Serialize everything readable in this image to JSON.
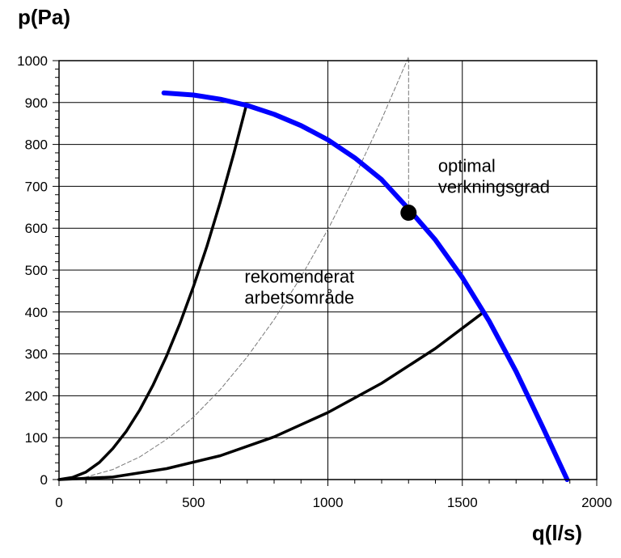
{
  "chart_data": {
    "type": "line",
    "ylabel": "p(Pa)",
    "xlabel": "q(l/s)",
    "xlim": [
      0,
      2000
    ],
    "ylim": [
      0,
      1000
    ],
    "x_ticks": [
      0,
      500,
      1000,
      1500,
      2000
    ],
    "y_ticks": [
      0,
      100,
      200,
      300,
      400,
      500,
      600,
      700,
      800,
      900,
      1000
    ],
    "x_minor_step": 100,
    "y_minor_step": 20,
    "grid": true,
    "series": [
      {
        "color": "#0000ff",
        "style": "thick",
        "x": [
          390,
          500,
          600,
          700,
          800,
          900,
          1000,
          1100,
          1200,
          1300,
          1400,
          1500,
          1600,
          1700,
          1800,
          1890
        ],
        "y": [
          923,
          918,
          908,
          893,
          872,
          845,
          811,
          768,
          716,
          646,
          572,
          482,
          378,
          258,
          124,
          0
        ]
      },
      {
        "color": "#000000",
        "style": "thick",
        "x": [
          0,
          50,
          100,
          150,
          200,
          250,
          300,
          350,
          400,
          450,
          500,
          550,
          600,
          650,
          697
        ],
        "y": [
          0,
          5,
          18,
          41,
          74,
          115,
          166,
          226,
          295,
          373,
          461,
          557,
          663,
          778,
          895
        ]
      },
      {
        "color": "#000000",
        "style": "thick",
        "x": [
          0,
          200,
          400,
          600,
          800,
          1000,
          1200,
          1400,
          1580
        ],
        "y": [
          0,
          6,
          26,
          57,
          102,
          160,
          230,
          313,
          400
        ]
      },
      {
        "color": "#777777",
        "style": "dashed",
        "x": [
          0,
          100,
          200,
          300,
          400,
          500,
          600,
          700,
          800,
          900,
          1000,
          1100,
          1200,
          1300
        ],
        "y": [
          0,
          6,
          24,
          54,
          96,
          149,
          215,
          293,
          382,
          484,
          597,
          723,
          860,
          1009
        ],
        "y_scale_note": ""
      }
    ],
    "points": [
      {
        "x": 1300,
        "y": 637,
        "color": "#000000"
      }
    ],
    "annotations": [
      {
        "lines": [
          "optimal",
          "verkningsgrad"
        ],
        "x": 1410,
        "y": 735
      },
      {
        "lines": [
          "rekomenderat",
          "arbetsområde"
        ],
        "x": 690,
        "y": 470
      }
    ]
  }
}
